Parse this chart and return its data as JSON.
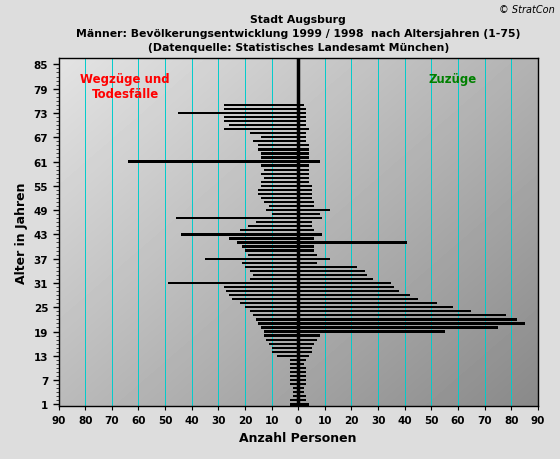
{
  "title1": "Stadt Augsburg",
  "title2": "Männer: Bevölkerungsentwicklung 1999 / 1998  nach Altersjahren (1-75)",
  "title3": "(Datenquelle: Statistisches Landesamt München)",
  "copyright": "© StratCon",
  "xlabel": "Anzahl Personen",
  "ylabel": "Alter in Jahren",
  "label_left": "Wegzüge und\nTodesfälle",
  "label_right": "Zuzüge",
  "ages": [
    1,
    2,
    3,
    4,
    5,
    6,
    7,
    8,
    9,
    10,
    11,
    12,
    13,
    14,
    15,
    16,
    17,
    18,
    19,
    20,
    21,
    22,
    23,
    24,
    25,
    26,
    27,
    28,
    29,
    30,
    31,
    32,
    33,
    34,
    35,
    36,
    37,
    38,
    39,
    40,
    41,
    42,
    43,
    44,
    45,
    46,
    47,
    48,
    49,
    50,
    51,
    52,
    53,
    54,
    55,
    56,
    57,
    58,
    59,
    60,
    61,
    62,
    63,
    64,
    65,
    66,
    67,
    68,
    69,
    70,
    71,
    72,
    73,
    74,
    75
  ],
  "values_left": [
    -3,
    -3,
    -2,
    -2,
    -2,
    -3,
    -3,
    -3,
    -3,
    -3,
    -3,
    -3,
    -8,
    -10,
    -10,
    -11,
    -12,
    -13,
    -13,
    -14,
    -15,
    -16,
    -17,
    -18,
    -20,
    -22,
    -25,
    -26,
    -27,
    -28,
    -49,
    -18,
    -17,
    -18,
    -20,
    -21,
    -35,
    -19,
    -20,
    -21,
    -23,
    -26,
    -44,
    -22,
    -19,
    -16,
    -46,
    -10,
    -12,
    -11,
    -13,
    -14,
    -15,
    -15,
    -14,
    -14,
    -13,
    -14,
    -13,
    -14,
    -64,
    -14,
    -14,
    -15,
    -15,
    -17,
    -14,
    -18,
    -28,
    -26,
    -28,
    -28,
    -45,
    -28,
    -28
  ],
  "values_right": [
    4,
    3,
    3,
    2,
    2,
    3,
    3,
    3,
    3,
    3,
    2,
    3,
    4,
    5,
    5,
    6,
    7,
    8,
    55,
    75,
    85,
    82,
    78,
    65,
    58,
    52,
    45,
    42,
    38,
    36,
    35,
    28,
    26,
    25,
    22,
    7,
    12,
    7,
    6,
    6,
    41,
    6,
    9,
    6,
    5,
    5,
    9,
    8,
    12,
    6,
    6,
    5,
    5,
    5,
    5,
    4,
    4,
    4,
    4,
    4,
    8,
    4,
    4,
    4,
    4,
    3,
    3,
    3,
    4,
    3,
    3,
    3,
    3,
    3,
    2
  ],
  "xlim": [
    -90,
    90
  ],
  "xticks": [
    -90,
    -80,
    -70,
    -60,
    -50,
    -40,
    -30,
    -20,
    -10,
    0,
    10,
    20,
    30,
    40,
    50,
    60,
    70,
    80,
    90
  ],
  "xticklabels": [
    "90",
    "80",
    "70",
    "60",
    "50",
    "40",
    "30",
    "20",
    "10",
    "0",
    "10",
    "20",
    "30",
    "40",
    "50",
    "60",
    "70",
    "80",
    "90"
  ],
  "ytick_major": [
    1,
    7,
    13,
    19,
    25,
    31,
    37,
    43,
    49,
    55,
    61,
    67,
    73,
    79,
    85
  ],
  "ytick_labels": [
    "1",
    "7",
    "13",
    "19",
    "25",
    "31",
    "37",
    "43",
    "49",
    "55",
    "61",
    "67",
    "73",
    "79",
    "85"
  ],
  "bar_color": "#000000",
  "grid_color": "#00cccc",
  "figure_bg": "#dddddd",
  "plot_bg_light": "#d8d8d8",
  "plot_bg_dark": "#888888"
}
